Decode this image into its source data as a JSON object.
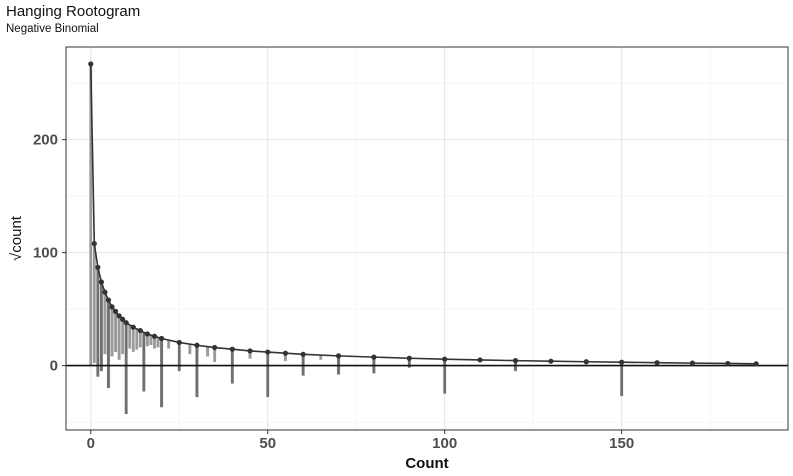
{
  "chart_data": {
    "type": "bar",
    "title": "Hanging Rootogram",
    "subtitle": "Negative Binomial",
    "xlabel": "Count",
    "ylabel": "√count",
    "xlim": [
      -7,
      197
    ],
    "ylim": [
      -57,
      282
    ],
    "x_ticks": [
      0,
      50,
      100,
      150
    ],
    "y_ticks": [
      0,
      100,
      200
    ],
    "grid": true,
    "expected_curve": {
      "x": [
        0,
        1,
        2,
        3,
        4,
        5,
        6,
        7,
        8,
        9,
        10,
        12,
        14,
        16,
        18,
        20,
        25,
        30,
        35,
        40,
        45,
        50,
        55,
        60,
        70,
        80,
        90,
        100,
        110,
        120,
        130,
        140,
        150,
        160,
        170,
        180,
        188
      ],
      "y": [
        267,
        108,
        87,
        74,
        65,
        58,
        52,
        48,
        44,
        41,
        38,
        34,
        31,
        28,
        26,
        24,
        20.5,
        18,
        16,
        14.5,
        13,
        12,
        11,
        10,
        8.6,
        7.5,
        6.5,
        5.7,
        5.0,
        4.4,
        3.9,
        3.4,
        3.0,
        2.6,
        2.2,
        1.9,
        1.6
      ]
    },
    "hanging_bars": {
      "x": [
        0,
        1,
        2,
        3,
        4,
        5,
        6,
        7,
        8,
        9,
        10,
        11,
        12,
        13,
        14,
        15,
        16,
        17,
        18,
        19,
        20,
        22,
        25,
        28,
        30,
        33,
        35,
        40,
        45,
        50,
        55,
        60,
        65,
        70,
        80,
        90,
        100,
        120,
        150
      ],
      "bottom": [
        0,
        2,
        -10,
        -5,
        10,
        -20,
        8,
        12,
        5,
        10,
        -43,
        15,
        12,
        14,
        16,
        -23,
        17,
        18,
        15,
        16,
        -37,
        15,
        -5,
        10,
        -28,
        8,
        3,
        -16,
        6,
        -28,
        4,
        -9,
        5,
        -8,
        -7,
        -2,
        -25,
        -5,
        -27
      ]
    }
  }
}
